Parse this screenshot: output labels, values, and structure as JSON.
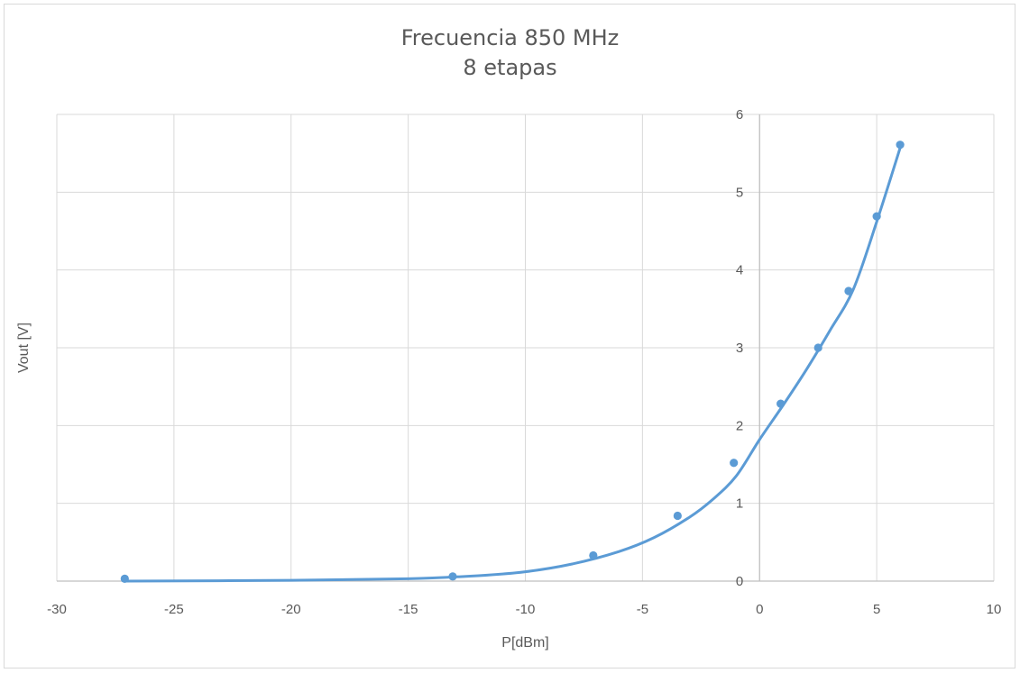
{
  "chart_data": {
    "type": "scatter",
    "title": [
      "Frecuencia 850 MHz",
      "8 etapas"
    ],
    "xlabel": "P[dBm]",
    "ylabel": "Vout [V]",
    "xlim": [
      -30,
      10
    ],
    "ylim": [
      0,
      6
    ],
    "xticks": [
      -30,
      -25,
      -20,
      -15,
      -10,
      -5,
      0,
      5,
      10
    ],
    "yticks": [
      0,
      1,
      2,
      3,
      4,
      5,
      6
    ],
    "grid": true,
    "legend": "none",
    "series": [
      {
        "points": [
          {
            "x": -27.1,
            "y": 0.03
          },
          {
            "x": -13.1,
            "y": 0.06
          },
          {
            "x": -7.1,
            "y": 0.33
          },
          {
            "x": -3.5,
            "y": 0.84
          },
          {
            "x": -1.1,
            "y": 1.52
          },
          {
            "x": 0.9,
            "y": 2.28
          },
          {
            "x": 2.5,
            "y": 3.0
          },
          {
            "x": 3.8,
            "y": 3.73
          },
          {
            "x": 5.0,
            "y": 4.69
          },
          {
            "x": 6.0,
            "y": 5.61
          }
        ],
        "trendline": {
          "type": "smooth",
          "points": [
            {
              "x": -27.1,
              "y": 0.0
            },
            {
              "x": -20.0,
              "y": 0.01
            },
            {
              "x": -15.0,
              "y": 0.03
            },
            {
              "x": -12.0,
              "y": 0.07
            },
            {
              "x": -10.0,
              "y": 0.12
            },
            {
              "x": -8.0,
              "y": 0.22
            },
            {
              "x": -6.0,
              "y": 0.38
            },
            {
              "x": -4.5,
              "y": 0.56
            },
            {
              "x": -3.0,
              "y": 0.82
            },
            {
              "x": -2.0,
              "y": 1.05
            },
            {
              "x": -1.0,
              "y": 1.35
            },
            {
              "x": 0.0,
              "y": 1.82
            },
            {
              "x": 1.0,
              "y": 2.26
            },
            {
              "x": 2.0,
              "y": 2.72
            },
            {
              "x": 3.0,
              "y": 3.22
            },
            {
              "x": 4.0,
              "y": 3.75
            },
            {
              "x": 5.0,
              "y": 4.62
            },
            {
              "x": 6.0,
              "y": 5.57
            }
          ]
        },
        "color": "#5b9bd5"
      }
    ],
    "gridline_color": "#d9d9d9",
    "axis_color": "#bfbfbf"
  }
}
